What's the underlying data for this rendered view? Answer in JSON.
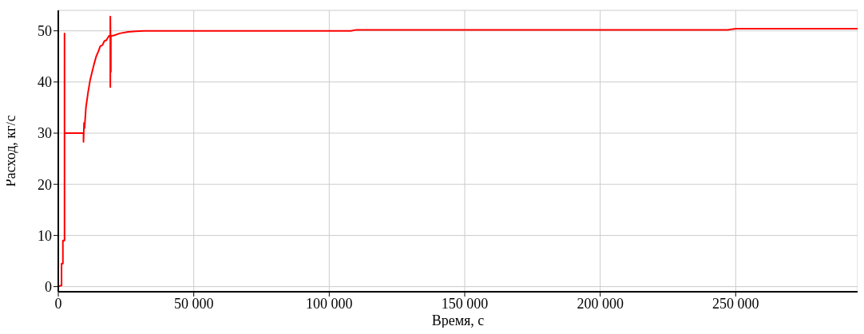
{
  "chart_data": {
    "type": "line",
    "xlabel": "Время, с",
    "ylabel": "Расход, кг/с",
    "x": [
      0,
      800,
      1200,
      1200,
      1700,
      1700,
      2300,
      2300,
      2300,
      9300,
      9300,
      9500,
      9700,
      10200,
      11000,
      11800,
      12500,
      13300,
      14000,
      14800,
      15500,
      16300,
      17000,
      17800,
      18700,
      19200,
      19200,
      19200,
      19400,
      19400,
      19600,
      20500,
      22700,
      25700,
      28500,
      31500,
      60000,
      108000,
      110000,
      247000,
      250000,
      295000
    ],
    "series": [
      {
        "color": "#ff0000",
        "values": [
          0,
          0.2,
          0.2,
          4.5,
          4.5,
          9,
          9,
          49.5,
          30,
          30,
          28.3,
          32,
          31,
          35,
          38,
          40.5,
          42,
          43.7,
          45,
          46,
          47,
          47.2,
          48,
          48.2,
          49,
          49,
          39,
          52.8,
          42,
          49,
          49,
          49.1,
          49.5,
          49.8,
          49.9,
          50,
          50,
          50,
          50.2,
          50.2,
          50.4,
          50.4
        ]
      }
    ],
    "xlim": [
      0,
      295000
    ],
    "ylim": [
      -1,
      54
    ],
    "xticks": [
      0,
      {
        "value": 50000,
        "label": "50 000"
      },
      {
        "value": 100000,
        "label": "100 000"
      },
      {
        "value": 150000,
        "label": "150 000"
      },
      {
        "value": 200000,
        "label": "200 000"
      },
      {
        "value": 250000,
        "label": "250 000"
      }
    ],
    "yticks": [
      0,
      10,
      20,
      30,
      40,
      50
    ],
    "grid": true,
    "marker": "none",
    "line_style": "solid"
  }
}
